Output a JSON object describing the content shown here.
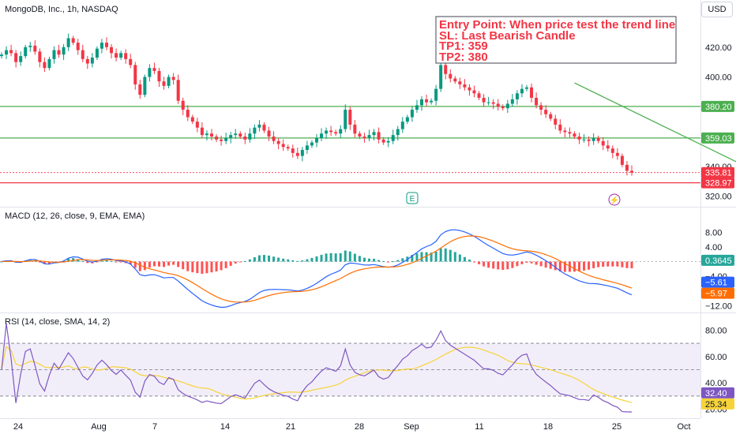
{
  "header": {
    "title": "MongoDB, Inc., 1h, NASDAQ",
    "currency": "USD"
  },
  "colors": {
    "up": "#089981",
    "down": "#f23645",
    "green_line": "#4caf50",
    "red_line": "#f23645",
    "macd_line": "#2962ff",
    "signal_line": "#ff6d00",
    "rsi_line": "#7e57c2",
    "rsi_ma": "#f7d33a"
  },
  "annotation": {
    "lines": [
      "Entry Point: When price test the trend line",
      "SL: Last Bearish Candle",
      "TP1: 359",
      "TP2: 380"
    ]
  },
  "events": {
    "earnings_icon": "E",
    "flash_icon": "⚡"
  },
  "chart_data": [
    {
      "type": "candlestick",
      "pane": "price",
      "title": "MongoDB, Inc., 1h, NASDAQ",
      "ylim": [
        315,
        440
      ],
      "yticks": [
        "420.00",
        "400.00",
        "380.00",
        "360.00",
        "340.00",
        "320.00"
      ],
      "x_ticks": [
        "24",
        "Aug",
        "7",
        "14",
        "21",
        "28",
        "Sep",
        "11",
        "18",
        "25",
        "Oct"
      ],
      "close_series": [
        415,
        418,
        416,
        410,
        414,
        420,
        421,
        417,
        410,
        406,
        412,
        418,
        415,
        420,
        426,
        423,
        418,
        412,
        409,
        413,
        419,
        423,
        420,
        416,
        413,
        416,
        412,
        408,
        395,
        388,
        400,
        406,
        404,
        397,
        394,
        400,
        398,
        384,
        378,
        373,
        370,
        366,
        361,
        362,
        360,
        358,
        357,
        359,
        361,
        362,
        360,
        358,
        362,
        366,
        368,
        364,
        360,
        357,
        355,
        353,
        352,
        349,
        347,
        351,
        354,
        356,
        359,
        362,
        364,
        363,
        362,
        365,
        378,
        368,
        362,
        360,
        359,
        361,
        363,
        358,
        356,
        357,
        361,
        365,
        370,
        373,
        378,
        381,
        385,
        383,
        384,
        392,
        408,
        402,
        399,
        397,
        395,
        393,
        391,
        389,
        386,
        383,
        383,
        382,
        380,
        379,
        382,
        385,
        389,
        392,
        393,
        386,
        381,
        378,
        375,
        372,
        368,
        364,
        363,
        362,
        360,
        358,
        358,
        357,
        359,
        357,
        354,
        352,
        349,
        347,
        341,
        337,
        335.81
      ],
      "levels": [
        {
          "label": "380.20",
          "value": 380.2
        },
        {
          "label": "359.03",
          "value": 359.03
        },
        {
          "label": "335.81",
          "value": 335.81
        },
        {
          "label": "328.97",
          "value": 328.97
        }
      ],
      "trend_line": {
        "from": {
          "x": 120,
          "price": 396
        },
        "to": {
          "x": 161,
          "price": 332
        }
      }
    },
    {
      "type": "line",
      "pane": "macd",
      "title": "MACD (12, 26, close, 9, EMA, EMA)",
      "ylim": [
        -13,
        10
      ],
      "yticks": [
        "8.00",
        "4.00",
        "−4.00",
        "−12.00"
      ],
      "series": [
        {
          "name": "MACD",
          "label": "0.3645",
          "last": 0.3645
        },
        {
          "name": "Signal",
          "label": "−5.97",
          "last": -5.97
        }
      ],
      "extra_labels": [
        {
          "label": "−5.61",
          "value": -5.61
        }
      ]
    },
    {
      "type": "line",
      "pane": "rsi",
      "title": "RSI (14, close, SMA, 14, 2)",
      "ylim": [
        15,
        88
      ],
      "yticks": [
        "80.00",
        "60.00",
        "40.00",
        "20.00"
      ],
      "bands": [
        70,
        50,
        30
      ],
      "series": [
        {
          "name": "RSI",
          "label": "32.40",
          "last": 32.4
        },
        {
          "name": "RSI MA",
          "label": "25.34",
          "last": 25.34
        }
      ]
    }
  ]
}
